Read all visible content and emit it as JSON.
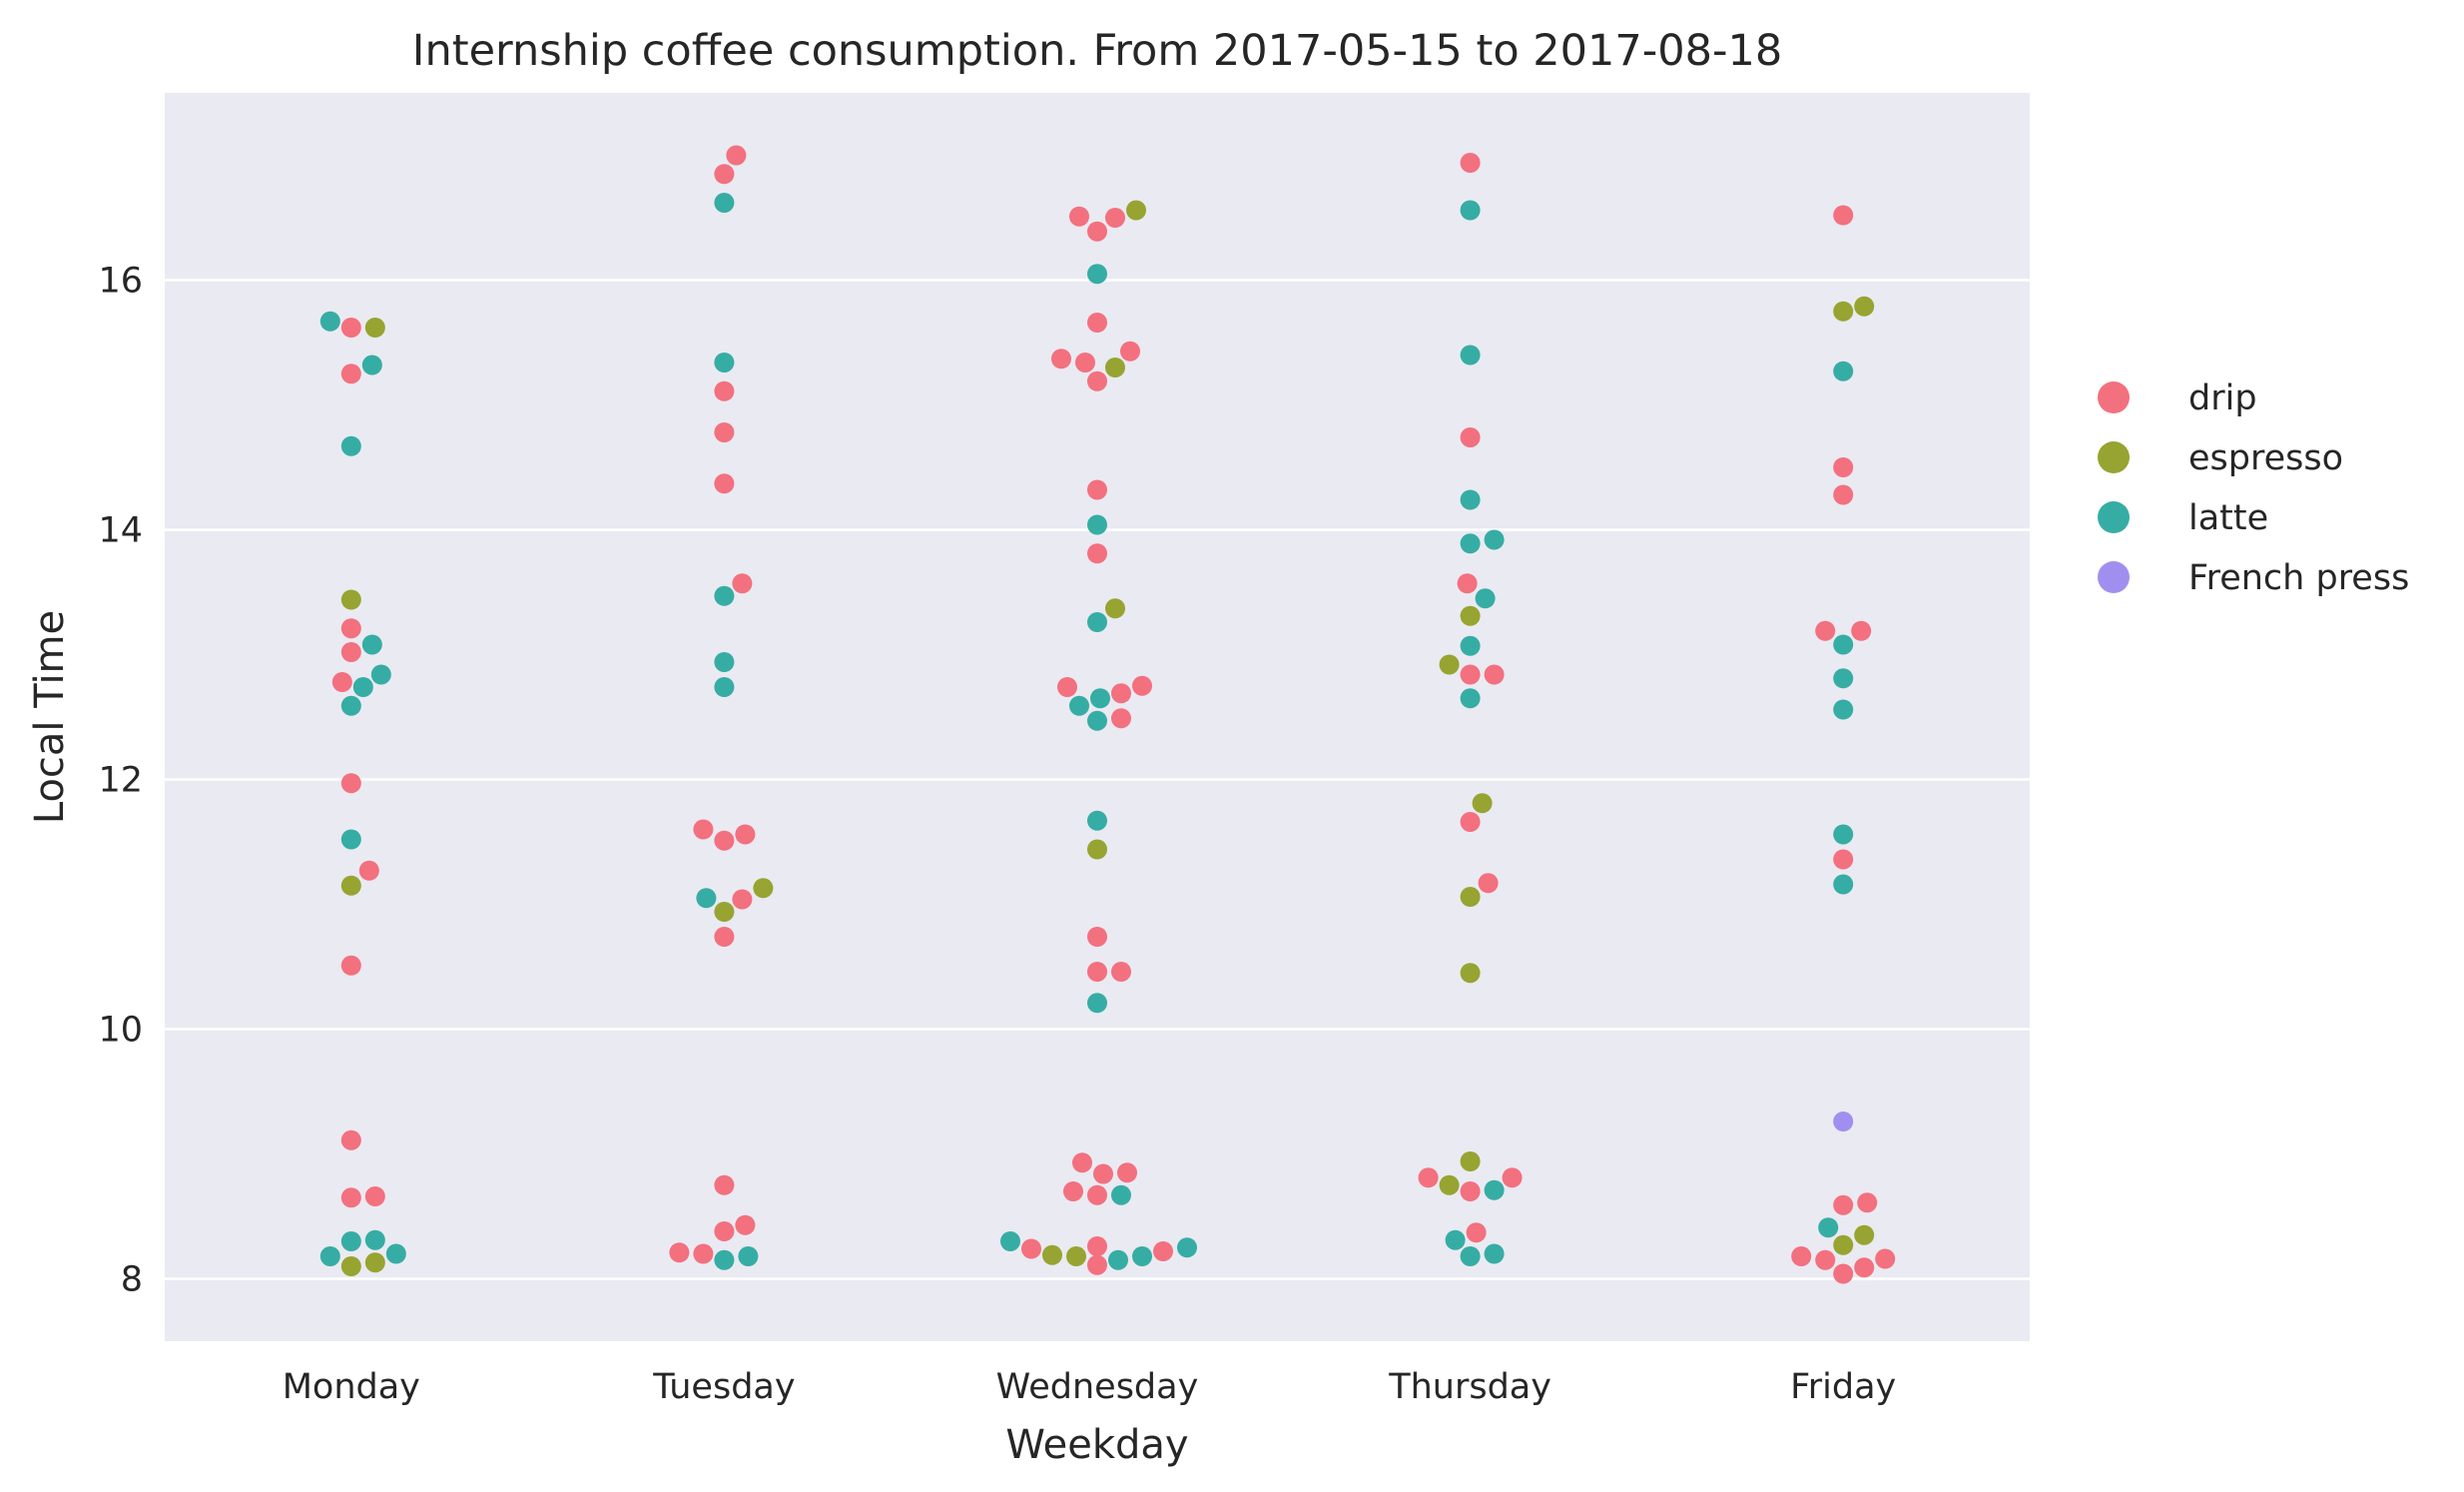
{
  "chart_data": {
    "type": "scatter",
    "title": "Internship coffee consumption. From 2017-05-15 to 2017-08-18",
    "xlabel": "Weekday",
    "ylabel": "Local Time",
    "categories": [
      "Monday",
      "Tuesday",
      "Wednesday",
      "Thursday",
      "Friday"
    ],
    "ylim": [
      7.5,
      17.5
    ],
    "yticks": [
      8,
      10,
      12,
      14,
      16
    ],
    "grid": true,
    "legend_position": "right",
    "series": [
      {
        "name": "drip",
        "color": "#f3707f",
        "points": [
          [
            "Monday",
            15.62
          ],
          [
            "Monday",
            15.25
          ],
          [
            "Monday",
            13.21
          ],
          [
            "Monday",
            13.02
          ],
          [
            "Monday",
            12.78
          ],
          [
            "Monday",
            11.97
          ],
          [
            "Monday",
            11.27
          ],
          [
            "Monday",
            10.51
          ],
          [
            "Monday",
            9.11
          ],
          [
            "Monday",
            8.66
          ],
          [
            "Monday",
            8.65
          ],
          [
            "Tuesday",
            17.0
          ],
          [
            "Tuesday",
            16.85
          ],
          [
            "Tuesday",
            15.11
          ],
          [
            "Tuesday",
            14.78
          ],
          [
            "Tuesday",
            14.37
          ],
          [
            "Tuesday",
            13.57
          ],
          [
            "Tuesday",
            11.56
          ],
          [
            "Tuesday",
            11.51
          ],
          [
            "Tuesday",
            11.6
          ],
          [
            "Tuesday",
            11.04
          ],
          [
            "Tuesday",
            10.74
          ],
          [
            "Tuesday",
            8.75
          ],
          [
            "Tuesday",
            8.43
          ],
          [
            "Tuesday",
            8.38
          ],
          [
            "Tuesday",
            8.2
          ],
          [
            "Tuesday",
            8.21
          ],
          [
            "Wednesday",
            16.5
          ],
          [
            "Wednesday",
            16.39
          ],
          [
            "Wednesday",
            16.51
          ],
          [
            "Wednesday",
            15.66
          ],
          [
            "Wednesday",
            15.43
          ],
          [
            "Wednesday",
            15.34
          ],
          [
            "Wednesday",
            15.37
          ],
          [
            "Wednesday",
            15.19
          ],
          [
            "Wednesday",
            14.32
          ],
          [
            "Wednesday",
            13.81
          ],
          [
            "Wednesday",
            12.69
          ],
          [
            "Wednesday",
            12.74
          ],
          [
            "Wednesday",
            12.75
          ],
          [
            "Wednesday",
            12.49
          ],
          [
            "Wednesday",
            10.74
          ],
          [
            "Wednesday",
            10.46
          ],
          [
            "Wednesday",
            10.46
          ],
          [
            "Wednesday",
            8.84
          ],
          [
            "Wednesday",
            8.85
          ],
          [
            "Wednesday",
            8.93
          ],
          [
            "Wednesday",
            8.7
          ],
          [
            "Wednesday",
            8.67
          ],
          [
            "Wednesday",
            8.26
          ],
          [
            "Wednesday",
            8.11
          ],
          [
            "Wednesday",
            8.22
          ],
          [
            "Wednesday",
            8.24
          ],
          [
            "Thursday",
            16.94
          ],
          [
            "Thursday",
            14.74
          ],
          [
            "Thursday",
            13.57
          ],
          [
            "Thursday",
            12.84
          ],
          [
            "Thursday",
            12.84
          ],
          [
            "Thursday",
            11.66
          ],
          [
            "Thursday",
            11.17
          ],
          [
            "Thursday",
            8.81
          ],
          [
            "Thursday",
            8.7
          ],
          [
            "Thursday",
            8.81
          ],
          [
            "Thursday",
            8.37
          ],
          [
            "Friday",
            16.52
          ],
          [
            "Friday",
            14.5
          ],
          [
            "Friday",
            14.28
          ],
          [
            "Friday",
            13.19
          ],
          [
            "Friday",
            13.19
          ],
          [
            "Friday",
            11.36
          ],
          [
            "Friday",
            8.61
          ],
          [
            "Friday",
            8.59
          ],
          [
            "Friday",
            8.18
          ],
          [
            "Friday",
            8.09
          ],
          [
            "Friday",
            8.04
          ],
          [
            "Friday",
            8.15
          ],
          [
            "Friday",
            8.16
          ]
        ]
      },
      {
        "name": "espresso",
        "color": "#97a431",
        "points": [
          [
            "Monday",
            15.62
          ],
          [
            "Monday",
            13.44
          ],
          [
            "Monday",
            11.15
          ],
          [
            "Monday",
            8.13
          ],
          [
            "Monday",
            8.1
          ],
          [
            "Tuesday",
            11.13
          ],
          [
            "Tuesday",
            10.94
          ],
          [
            "Wednesday",
            16.56
          ],
          [
            "Wednesday",
            15.3
          ],
          [
            "Wednesday",
            13.37
          ],
          [
            "Wednesday",
            11.44
          ],
          [
            "Wednesday",
            8.19
          ],
          [
            "Wednesday",
            8.18
          ],
          [
            "Thursday",
            13.31
          ],
          [
            "Thursday",
            12.92
          ],
          [
            "Thursday",
            11.81
          ],
          [
            "Thursday",
            11.06
          ],
          [
            "Thursday",
            10.45
          ],
          [
            "Thursday",
            8.94
          ],
          [
            "Thursday",
            8.75
          ],
          [
            "Friday",
            15.79
          ],
          [
            "Friday",
            15.75
          ],
          [
            "Friday",
            8.35
          ],
          [
            "Friday",
            8.27
          ]
        ]
      },
      {
        "name": "latte",
        "color": "#36ada4",
        "points": [
          [
            "Monday",
            15.67
          ],
          [
            "Monday",
            15.32
          ],
          [
            "Monday",
            14.67
          ],
          [
            "Monday",
            13.08
          ],
          [
            "Monday",
            12.84
          ],
          [
            "Monday",
            12.74
          ],
          [
            "Monday",
            12.59
          ],
          [
            "Monday",
            11.52
          ],
          [
            "Monday",
            8.31
          ],
          [
            "Monday",
            8.3
          ],
          [
            "Monday",
            8.18
          ],
          [
            "Monday",
            8.2
          ],
          [
            "Tuesday",
            16.62
          ],
          [
            "Tuesday",
            15.34
          ],
          [
            "Tuesday",
            13.47
          ],
          [
            "Tuesday",
            12.94
          ],
          [
            "Tuesday",
            12.74
          ],
          [
            "Tuesday",
            11.05
          ],
          [
            "Tuesday",
            8.18
          ],
          [
            "Tuesday",
            8.15
          ],
          [
            "Wednesday",
            16.05
          ],
          [
            "Wednesday",
            14.04
          ],
          [
            "Wednesday",
            13.26
          ],
          [
            "Wednesday",
            12.65
          ],
          [
            "Wednesday",
            12.59
          ],
          [
            "Wednesday",
            12.47
          ],
          [
            "Wednesday",
            11.67
          ],
          [
            "Wednesday",
            10.21
          ],
          [
            "Wednesday",
            8.67
          ],
          [
            "Wednesday",
            8.3
          ],
          [
            "Wednesday",
            8.25
          ],
          [
            "Wednesday",
            8.15
          ],
          [
            "Wednesday",
            8.18
          ],
          [
            "Thursday",
            16.56
          ],
          [
            "Thursday",
            15.4
          ],
          [
            "Thursday",
            14.24
          ],
          [
            "Thursday",
            13.92
          ],
          [
            "Thursday",
            13.89
          ],
          [
            "Thursday",
            13.45
          ],
          [
            "Thursday",
            13.07
          ],
          [
            "Thursday",
            12.65
          ],
          [
            "Thursday",
            8.71
          ],
          [
            "Thursday",
            8.2
          ],
          [
            "Thursday",
            8.18
          ],
          [
            "Thursday",
            8.31
          ],
          [
            "Friday",
            15.27
          ],
          [
            "Friday",
            13.08
          ],
          [
            "Friday",
            12.81
          ],
          [
            "Friday",
            12.56
          ],
          [
            "Friday",
            11.56
          ],
          [
            "Friday",
            11.16
          ],
          [
            "Friday",
            8.41
          ]
        ]
      },
      {
        "name": "French press",
        "color": "#a18ff0",
        "points": [
          [
            "Friday",
            9.26
          ]
        ]
      }
    ]
  }
}
